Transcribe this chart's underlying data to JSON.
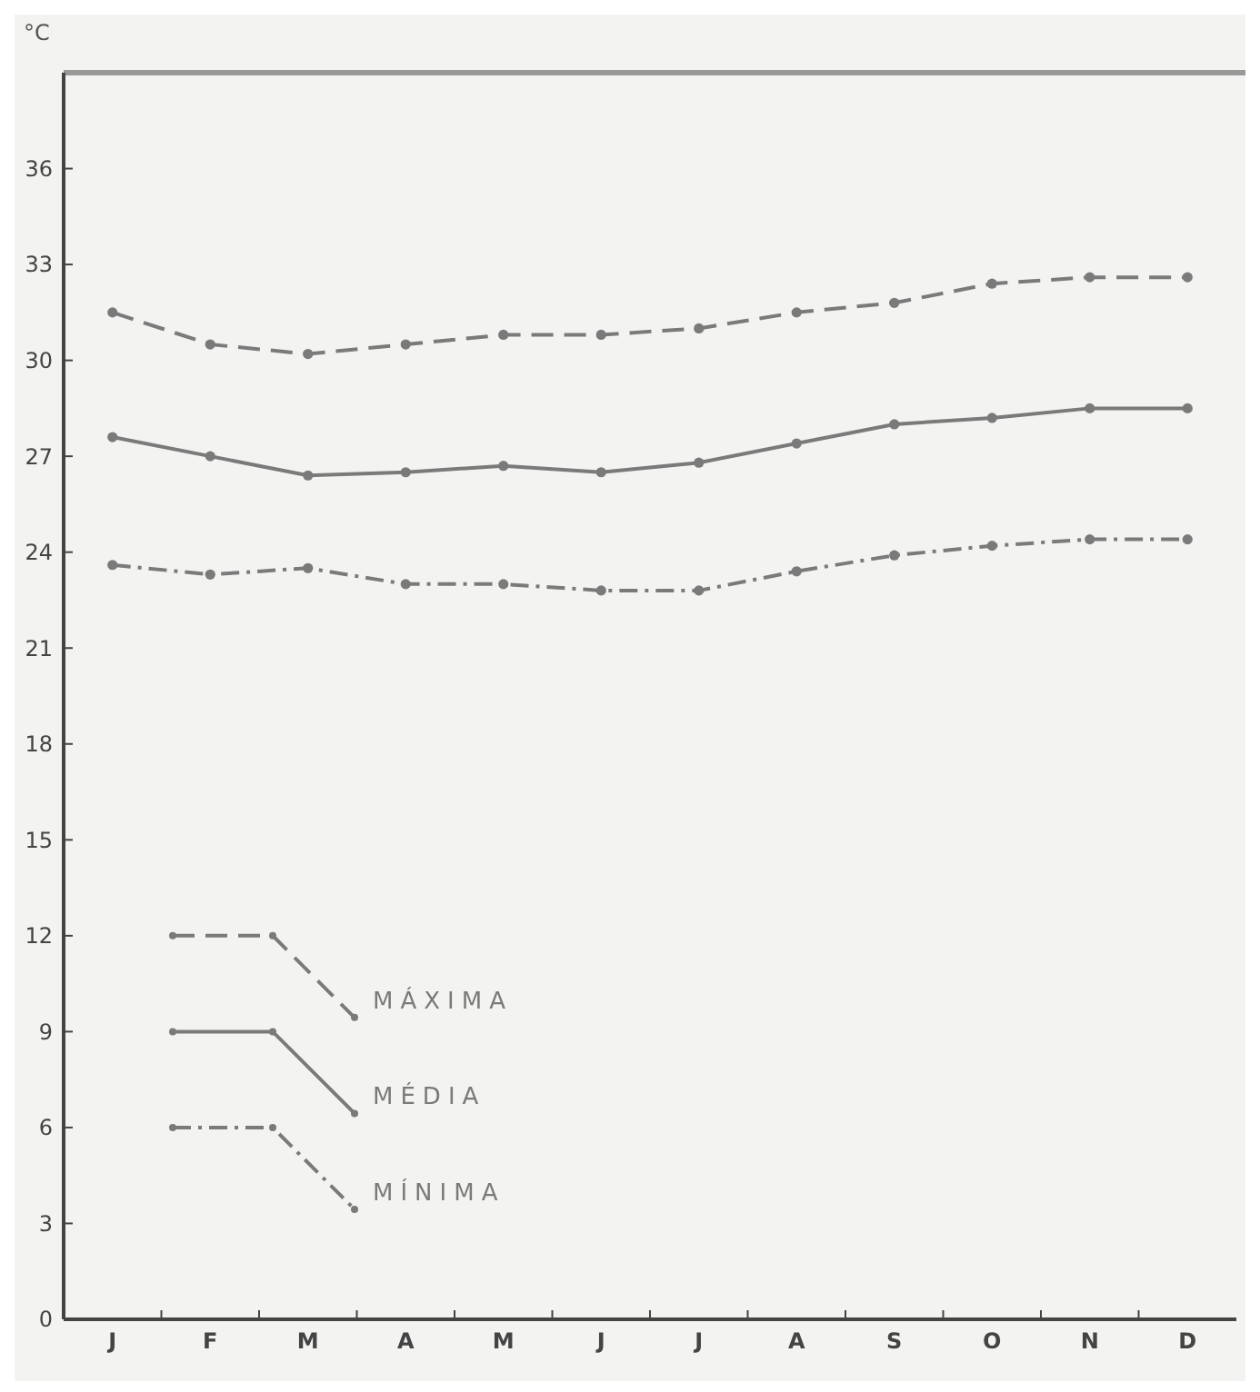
{
  "chart_data": {
    "type": "line",
    "ylabel": "°C",
    "categories": [
      "J",
      "F",
      "M",
      "A",
      "M",
      "J",
      "J",
      "A",
      "S",
      "O",
      "N",
      "D"
    ],
    "ylim": [
      0,
      39
    ],
    "yticks": [
      0,
      3,
      6,
      9,
      12,
      15,
      18,
      21,
      24,
      27,
      30,
      33,
      36
    ],
    "grid": false,
    "legend": "bottom left",
    "marker": "circle",
    "series": [
      {
        "name": "MÁXIMA",
        "color": "#7a7a7a",
        "line_style": "dashed",
        "values": [
          31.5,
          30.5,
          30.2,
          30.5,
          30.8,
          30.8,
          31.0,
          31.5,
          31.8,
          32.4,
          32.6,
          32.6
        ]
      },
      {
        "name": "MÉDIA",
        "color": "#7a7a7a",
        "line_style": "solid",
        "values": [
          27.6,
          27.0,
          26.4,
          26.5,
          26.7,
          26.5,
          26.8,
          27.4,
          28.0,
          28.2,
          28.5,
          28.5
        ]
      },
      {
        "name": "MÍNIMA",
        "color": "#7a7a7a",
        "line_style": "dashdot",
        "values": [
          23.6,
          23.3,
          23.5,
          23.0,
          23.0,
          22.8,
          22.8,
          23.4,
          23.9,
          24.2,
          24.4,
          24.4
        ]
      }
    ]
  }
}
